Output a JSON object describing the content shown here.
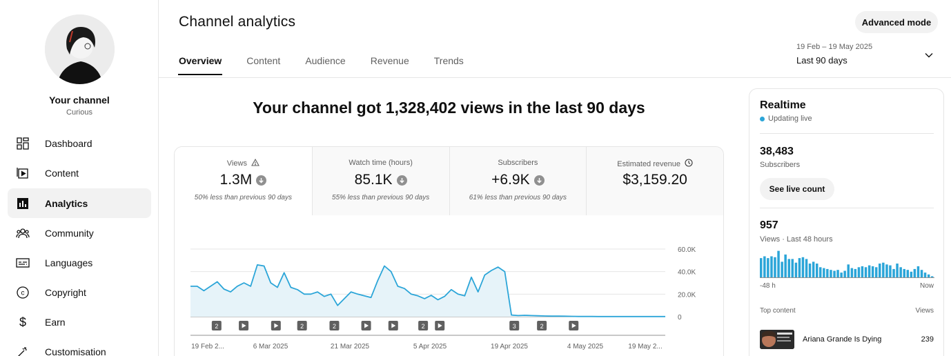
{
  "sidebar": {
    "channel_name": "Your channel",
    "channel_subtitle": "Curious",
    "items": [
      {
        "label": "Dashboard",
        "icon": "dashboard-icon"
      },
      {
        "label": "Content",
        "icon": "content-icon"
      },
      {
        "label": "Analytics",
        "icon": "analytics-icon",
        "active": true
      },
      {
        "label": "Community",
        "icon": "community-icon"
      },
      {
        "label": "Languages",
        "icon": "languages-icon"
      },
      {
        "label": "Copyright",
        "icon": "copyright-icon"
      },
      {
        "label": "Earn",
        "icon": "earn-icon"
      },
      {
        "label": "Customisation",
        "icon": "customisation-icon"
      }
    ]
  },
  "header": {
    "title": "Channel analytics",
    "advanced_mode": "Advanced mode",
    "tabs": [
      "Overview",
      "Content",
      "Audience",
      "Revenue",
      "Trends"
    ],
    "active_tab": "Overview",
    "date_range": "19 Feb – 19 May 2025",
    "date_period": "Last 90 days"
  },
  "headline": "Your channel got 1,328,402 views in the last 90 days",
  "metrics": [
    {
      "label": "Views",
      "value": "1.3M",
      "note": "50% less than previous 90 days",
      "icon": "warning-icon",
      "trend": "down"
    },
    {
      "label": "Watch time (hours)",
      "value": "85.1K",
      "note": "55% less than previous 90 days",
      "trend": "down"
    },
    {
      "label": "Subscribers",
      "value": "+6.9K",
      "note": "61% less than previous 90 days",
      "trend": "down"
    },
    {
      "label": "Estimated revenue",
      "value": "$3,159.20",
      "icon": "clock-icon"
    }
  ],
  "chart_data": {
    "type": "area",
    "series": [
      {
        "values": [
          27000,
          27000,
          23000,
          27000,
          31000,
          24500,
          22000,
          27000,
          30000,
          27000,
          46000,
          45000,
          30000,
          26000,
          39000,
          26000,
          24000,
          20000,
          20000,
          22000,
          18000,
          20000,
          10000,
          16000,
          22000,
          20000,
          18500,
          17000,
          32000,
          45000,
          40000,
          27000,
          25000,
          20000,
          18500,
          16000,
          19000,
          15000,
          18000,
          24000,
          20000,
          18500,
          35000,
          22000,
          37000,
          41000,
          44000,
          40000,
          1500,
          1000,
          1200,
          1000,
          800,
          600,
          500,
          500,
          400,
          300,
          200,
          200,
          200,
          100,
          100,
          100,
          100,
          100,
          100,
          100,
          100,
          100,
          100,
          100
        ]
      }
    ],
    "x_ticks": [
      "19 Feb 2...",
      "6 Mar 2025",
      "21 Mar 2025",
      "5 Apr 2025",
      "19 Apr 2025",
      "4 May 2025",
      "19 May 2..."
    ],
    "y_ticks": [
      "60.0K",
      "40.0K",
      "20.0K",
      "0"
    ],
    "ylim": [
      0,
      60000
    ],
    "markers": [
      {
        "pos": 0.055,
        "type": "number",
        "label": "2"
      },
      {
        "pos": 0.112,
        "type": "play"
      },
      {
        "pos": 0.18,
        "type": "play"
      },
      {
        "pos": 0.235,
        "type": "number",
        "label": "2"
      },
      {
        "pos": 0.303,
        "type": "number",
        "label": "2"
      },
      {
        "pos": 0.37,
        "type": "play"
      },
      {
        "pos": 0.427,
        "type": "play"
      },
      {
        "pos": 0.49,
        "type": "number",
        "label": "2"
      },
      {
        "pos": 0.525,
        "type": "play"
      },
      {
        "pos": 0.682,
        "type": "number",
        "label": "3"
      },
      {
        "pos": 0.74,
        "type": "number",
        "label": "2"
      },
      {
        "pos": 0.807,
        "type": "play"
      }
    ],
    "color": "#2ba5d8",
    "fill": "#e6f3f9"
  },
  "realtime": {
    "title": "Realtime",
    "status": "Updating live",
    "subscribers_value": "38,483",
    "subscribers_label": "Subscribers",
    "live_button": "See live count",
    "views_value": "957",
    "views_label": "Views · Last 48 hours",
    "axis_start": "-48 h",
    "axis_end": "Now",
    "bars": [
      22,
      24,
      22,
      24,
      23,
      30,
      18,
      26,
      21,
      21,
      17,
      22,
      23,
      21,
      16,
      18,
      16,
      12,
      11,
      10,
      9,
      8,
      9,
      6,
      8,
      15,
      11,
      10,
      12,
      13,
      12,
      14,
      13,
      12,
      16,
      17,
      15,
      14,
      10,
      16,
      12,
      10,
      9,
      7,
      10,
      13,
      9,
      6,
      4,
      2
    ],
    "top_content_header": "Top content",
    "views_header": "Views",
    "top_item": {
      "title": "Ariana Grande Is Dying",
      "views": "239"
    }
  }
}
